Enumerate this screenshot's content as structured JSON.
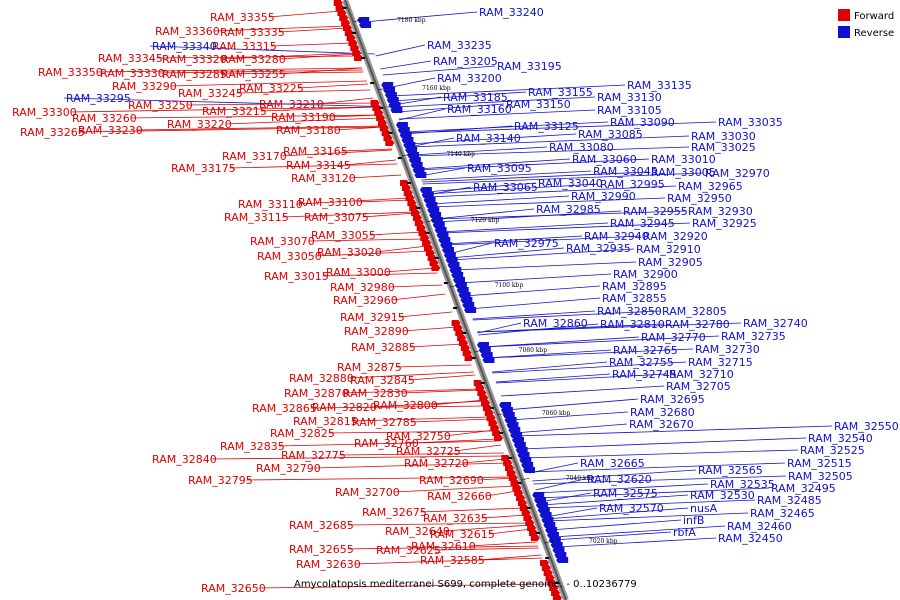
{
  "legend": {
    "forward_label": "Forward",
    "reverse_label": "Reverse",
    "forward_color": "#e00000",
    "reverse_color": "#1010d0"
  },
  "caption": "Amycolatopsis mediterranei S699, complete genome. - 0..10236779",
  "ticks": [
    "7180 kbp",
    "7160 kbp",
    "7140 kbp",
    "7120 kbp",
    "7100 kbp",
    "7080 kbp",
    "7060 kbp",
    "7040 kbp",
    "7020 kbp"
  ],
  "forward_labels": [
    "RAM_33355",
    "RAM_33360",
    "RAM_33335",
    "RAM_33315",
    "RAM_33345",
    "RAM_33320",
    "RAM_33280",
    "RAM_33350",
    "RAM_33330",
    "RAM_33285",
    "RAM_33255",
    "RAM_33290",
    "RAM_33225",
    "RAM_33245",
    "RAM_33250",
    "RAM_33210",
    "RAM_33300",
    "RAM_33215",
    "RAM_33260",
    "RAM_33190",
    "RAM_33220",
    "RAM_33265",
    "RAM_33230",
    "RAM_33180",
    "RAM_33165",
    "RAM_33170",
    "RAM_33145",
    "RAM_33175",
    "RAM_33120",
    "RAM_33100",
    "RAM_33110",
    "RAM_33115",
    "RAM_33075",
    "RAM_33055",
    "RAM_33070",
    "RAM_33020",
    "RAM_33050",
    "RAM_33000",
    "RAM_33015",
    "RAM_32980",
    "RAM_32960",
    "RAM_32915",
    "RAM_32890",
    "RAM_32885",
    "RAM_32875",
    "RAM_32880",
    "RAM_32845",
    "RAM_32870",
    "RAM_32830",
    "RAM_32865",
    "RAM_32820",
    "RAM_32800",
    "RAM_32815",
    "RAM_32785",
    "RAM_32825",
    "RAM_32750",
    "RAM_32835",
    "RAM_32760",
    "RAM_32840",
    "RAM_32775",
    "RAM_32725",
    "RAM_32790",
    "RAM_32720",
    "RAM_32795",
    "RAM_32690",
    "RAM_32700",
    "RAM_32660",
    "RAM_32675",
    "RAM_32635",
    "RAM_32685",
    "RAM_32640",
    "RAM_32615",
    "RAM_32610",
    "RAM_32655",
    "RAM_32625",
    "RAM_32630",
    "RAM_32585",
    "RAM_32650"
  ],
  "reverse_labels": [
    "RAM_33340",
    "RAM_33295",
    "RAM_33240",
    "RAM_33235",
    "RAM_33205",
    "RAM_33195",
    "RAM_33200",
    "RAM_33135",
    "RAM_33185",
    "RAM_33155",
    "RAM_33130",
    "RAM_33160",
    "RAM_33150",
    "RAM_33105",
    "RAM_33090",
    "RAM_33035",
    "RAM_33125",
    "RAM_33140",
    "RAM_33085",
    "RAM_33030",
    "RAM_33080",
    "RAM_33025",
    "RAM_33060",
    "RAM_33010",
    "RAM_33095",
    "RAM_33045",
    "RAM_33005",
    "RAM_32970",
    "RAM_33065",
    "RAM_33040",
    "RAM_32995",
    "RAM_32965",
    "RAM_32990",
    "RAM_32950",
    "RAM_32985",
    "RAM_32955",
    "RAM_32930",
    "RAM_32945",
    "RAM_32925",
    "RAM_32975",
    "RAM_32940",
    "RAM_32920",
    "RAM_32935",
    "RAM_32910",
    "RAM_32905",
    "RAM_32900",
    "RAM_32895",
    "RAM_32855",
    "RAM_32850",
    "RAM_32805",
    "RAM_32860",
    "RAM_32810",
    "RAM_32780",
    "RAM_32740",
    "RAM_32770",
    "RAM_32735",
    "RAM_32765",
    "RAM_32730",
    "RAM_32755",
    "RAM_32715",
    "RAM_32745",
    "RAM_32710",
    "RAM_32705",
    "RAM_32695",
    "RAM_32680",
    "RAM_32670",
    "RAM_32550",
    "RAM_32540",
    "RAM_32525",
    "RAM_32515",
    "RAM_32665",
    "RAM_32565",
    "RAM_32505",
    "RAM_32535",
    "RAM_32495",
    "RAM_32620",
    "RAM_32485",
    "RAM_32575",
    "RAM_32530",
    "nusA",
    "RAM_32465",
    "RAM_32570",
    "infB",
    "RAM_32460",
    "rbfA",
    "RAM_32450"
  ]
}
